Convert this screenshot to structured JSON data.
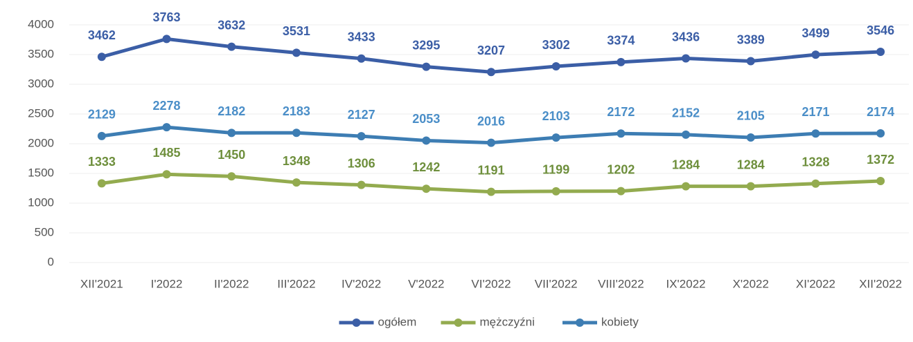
{
  "chart_data": {
    "type": "line",
    "categories": [
      "XII'2021",
      "I'2022",
      "II'2022",
      "III'2022",
      "IV'2022",
      "V'2022",
      "VI'2022",
      "VII'2022",
      "VIII'2022",
      "IX'2022",
      "X'2022",
      "XI'2022",
      "XII'2022"
    ],
    "series": [
      {
        "name": "ogółem",
        "color": "#3b5ea6",
        "label_color": "#3b5ea6",
        "values": [
          3462,
          3763,
          3632,
          3531,
          3433,
          3295,
          3207,
          3302,
          3374,
          3436,
          3389,
          3499,
          3546
        ]
      },
      {
        "name": "mężczyźni",
        "color": "#93ab4f",
        "label_color": "#6e8f3c",
        "values": [
          1333,
          1485,
          1450,
          1348,
          1306,
          1242,
          1191,
          1199,
          1202,
          1284,
          1284,
          1328,
          1372
        ]
      },
      {
        "name": "kobiety",
        "color": "#3d7db3",
        "label_color": "#4a8ec8",
        "values": [
          2129,
          2278,
          2182,
          2183,
          2127,
          2053,
          2016,
          2103,
          2172,
          2152,
          2105,
          2171,
          2174
        ]
      }
    ],
    "ylim": [
      0,
      4000
    ],
    "yticks": [
      0,
      500,
      1000,
      1500,
      2000,
      2500,
      3000,
      3500,
      4000
    ],
    "grid": true,
    "legend": "bottom"
  }
}
